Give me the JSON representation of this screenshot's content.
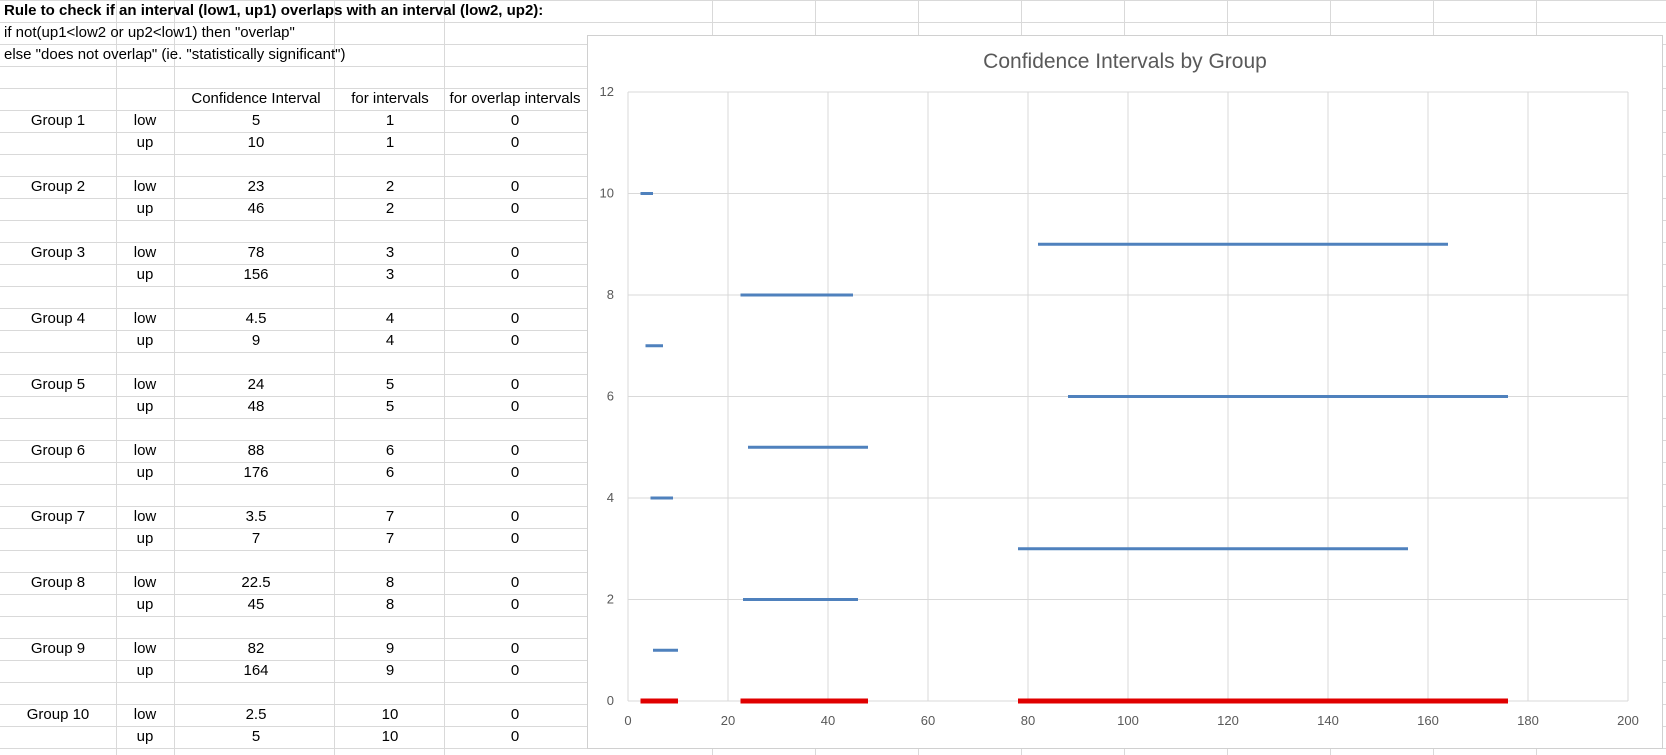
{
  "rule": {
    "title": "Rule to check if an interval (low1, up1) overlaps with an interval (low2, up2):",
    "line1": "if not(up1<low2 or up2<low1) then \"overlap\"",
    "line2": "else \"does not overlap\" (ie. \"statistically significant\")"
  },
  "table": {
    "headers": [
      "Confidence Interval",
      "for intervals",
      "for overlap intervals"
    ],
    "low_label": "low",
    "up_label": "up",
    "groups": [
      {
        "name": "Group 1",
        "low": "5",
        "up": "10",
        "fi_low": "1",
        "fi_up": "1",
        "fo_low": "0",
        "fo_up": "0"
      },
      {
        "name": "Group 2",
        "low": "23",
        "up": "46",
        "fi_low": "2",
        "fi_up": "2",
        "fo_low": "0",
        "fo_up": "0"
      },
      {
        "name": "Group 3",
        "low": "78",
        "up": "156",
        "fi_low": "3",
        "fi_up": "3",
        "fo_low": "0",
        "fo_up": "0"
      },
      {
        "name": "Group 4",
        "low": "4.5",
        "up": "9",
        "fi_low": "4",
        "fi_up": "4",
        "fo_low": "0",
        "fo_up": "0"
      },
      {
        "name": "Group 5",
        "low": "24",
        "up": "48",
        "fi_low": "5",
        "fi_up": "5",
        "fo_low": "0",
        "fo_up": "0"
      },
      {
        "name": "Group 6",
        "low": "88",
        "up": "176",
        "fi_low": "6",
        "fi_up": "6",
        "fo_low": "0",
        "fo_up": "0"
      },
      {
        "name": "Group 7",
        "low": "3.5",
        "up": "7",
        "fi_low": "7",
        "fi_up": "7",
        "fo_low": "0",
        "fo_up": "0"
      },
      {
        "name": "Group 8",
        "low": "22.5",
        "up": "45",
        "fi_low": "8",
        "fi_up": "8",
        "fo_low": "0",
        "fo_up": "0"
      },
      {
        "name": "Group 9",
        "low": "82",
        "up": "164",
        "fi_low": "9",
        "fi_up": "9",
        "fo_low": "0",
        "fo_up": "0"
      },
      {
        "name": "Group 10",
        "low": "2.5",
        "up": "5",
        "fi_low": "10",
        "fi_up": "10",
        "fo_low": "0",
        "fo_up": "0"
      }
    ]
  },
  "chart_data": {
    "type": "line",
    "title": "Confidence Intervals by Group",
    "xlim": [
      0,
      200
    ],
    "ylim": [
      0,
      12
    ],
    "x_ticks": [
      0,
      20,
      40,
      60,
      80,
      100,
      120,
      140,
      160,
      180,
      200
    ],
    "y_ticks": [
      0,
      2,
      4,
      6,
      8,
      10,
      12
    ],
    "grid": true,
    "legend": "none",
    "interval_color": "#4f81bd",
    "overlap_color": "#e00000",
    "intervals": [
      {
        "low": 5,
        "up": 10,
        "y": 1
      },
      {
        "low": 23,
        "up": 46,
        "y": 2
      },
      {
        "low": 78,
        "up": 156,
        "y": 3
      },
      {
        "low": 4.5,
        "up": 9,
        "y": 4
      },
      {
        "low": 24,
        "up": 48,
        "y": 5
      },
      {
        "low": 88,
        "up": 176,
        "y": 6
      },
      {
        "low": 3.5,
        "up": 7,
        "y": 7
      },
      {
        "low": 22.5,
        "up": 45,
        "y": 8
      },
      {
        "low": 82,
        "up": 164,
        "y": 9
      },
      {
        "low": 2.5,
        "up": 5,
        "y": 10
      }
    ],
    "overlap_intervals": [
      {
        "low": 2.5,
        "up": 10,
        "y": 0
      },
      {
        "low": 22.5,
        "up": 48,
        "y": 0
      },
      {
        "low": 78,
        "up": 176,
        "y": 0
      }
    ]
  }
}
